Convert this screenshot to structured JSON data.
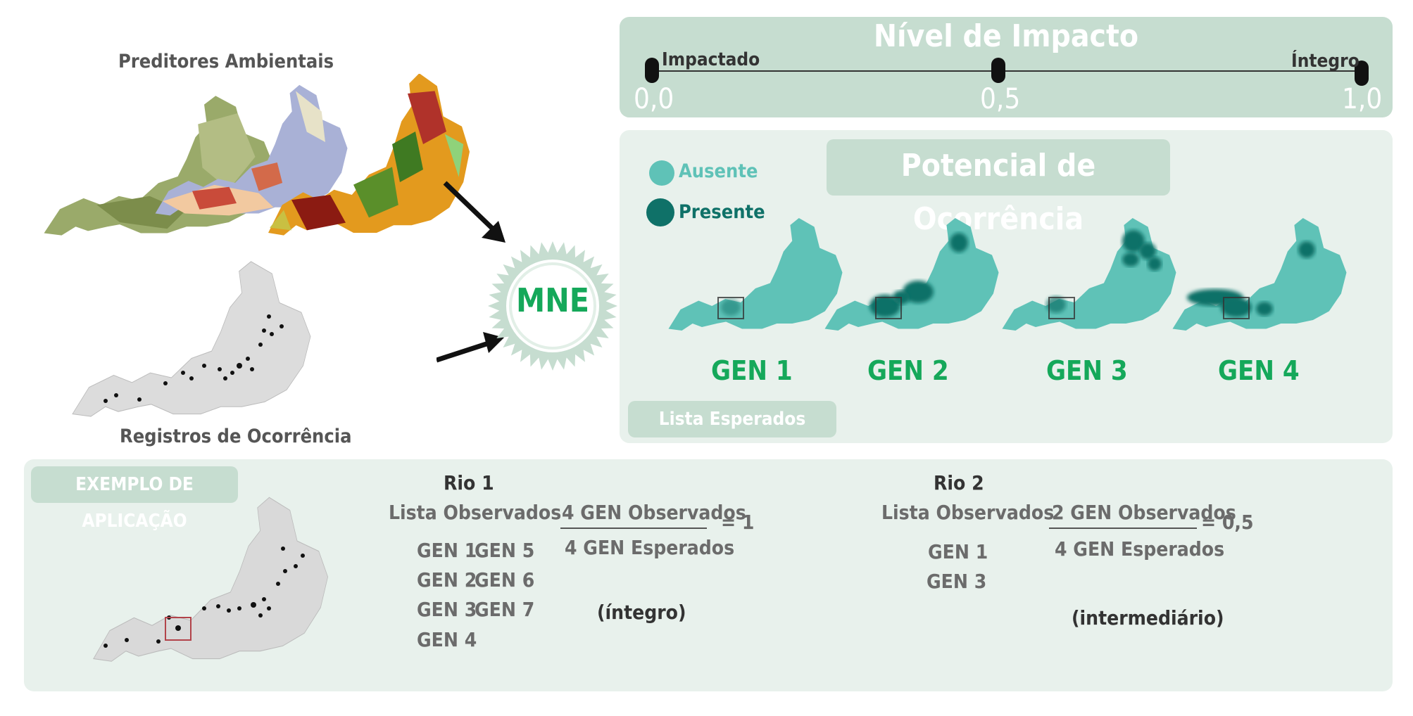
{
  "predictors_title": "Preditores Ambientais",
  "records_title": "Registros de Ocorrência",
  "model_label": "MNE",
  "impact": {
    "title": "Nível de Impacto",
    "left_label": "Impactado",
    "right_label": "Íntegro",
    "ticks": [
      "0,0",
      "0,5",
      "1,0"
    ]
  },
  "occurrence": {
    "title": "Potencial de Ocorrência",
    "legend_absent": "Ausente",
    "legend_present": "Presente",
    "maps": [
      {
        "label": "GEN 1"
      },
      {
        "label": "GEN 2"
      },
      {
        "label": "GEN 3"
      },
      {
        "label": "GEN 4"
      }
    ],
    "expected_list_label": "Lista Esperados"
  },
  "example": {
    "tag": "EXEMPLO DE APLICAÇÃO",
    "rio1": {
      "title": "Rio 1",
      "observed_label": "Lista Observados",
      "observed_col1": [
        "GEN 1",
        "GEN 2",
        "GEN 3",
        "GEN 4"
      ],
      "observed_col2": [
        "GEN 5",
        "GEN 6",
        "GEN 7"
      ],
      "numerator": "4 GEN Observados",
      "denominator": "4 GEN Esperados",
      "result": "= 1",
      "classification": "(íntegro)"
    },
    "rio2": {
      "title": "Rio 2",
      "observed_label": "Lista Observados",
      "observed_col1": [
        "GEN 1",
        "GEN 3"
      ],
      "numerator": "2 GEN Observados",
      "denominator": "4 GEN Esperados",
      "result": "= 0,5",
      "classification": "(intermediário)"
    }
  },
  "colors": {
    "teal_light": "#5fc2b7",
    "teal_dark": "#0f7168",
    "green_text": "#15a85a",
    "panel_bg": "#e8f1ec",
    "panel_tag": "#c6ddd0"
  }
}
